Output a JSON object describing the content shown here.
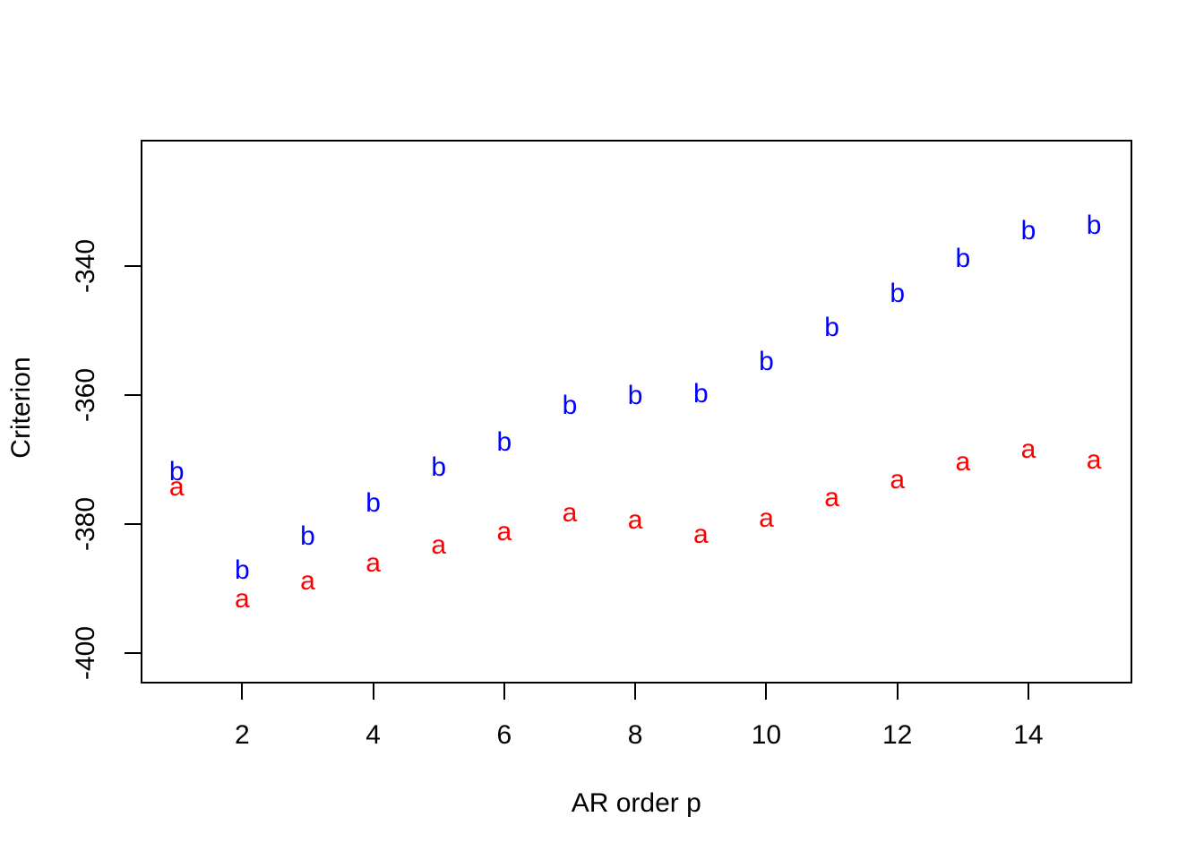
{
  "figure": {
    "background": "#FFFFFF",
    "axis_color": "#000000",
    "series_a_color": "#FF0000",
    "series_b_color": "#0000FF"
  },
  "chart_data": {
    "type": "scatter",
    "title": "",
    "xlabel": "AR order p",
    "ylabel": "Criterion",
    "point_style": "text-characters",
    "x": [
      1,
      2,
      3,
      4,
      5,
      6,
      7,
      8,
      9,
      10,
      11,
      12,
      13,
      14,
      15
    ],
    "series": [
      {
        "name": "a",
        "symbol": "a",
        "color": "#FF0000",
        "values": [
          -374.3,
          -391.7,
          -388.9,
          -386.1,
          -383.3,
          -381.3,
          -378.4,
          -379.4,
          -381.7,
          -379.2,
          -376.0,
          -373.2,
          -370.4,
          -368.5,
          -370.2
        ]
      },
      {
        "name": "b",
        "symbol": "b",
        "color": "#0000FF",
        "values": [
          -371.9,
          -387.2,
          -382.0,
          -376.8,
          -371.3,
          -367.3,
          -361.6,
          -360.1,
          -359.8,
          -354.8,
          -349.5,
          -344.3,
          -338.8,
          -334.6,
          -333.7
        ]
      }
    ],
    "x_ticks": [
      2,
      4,
      6,
      8,
      10,
      12,
      14
    ],
    "x_tick_labels": [
      "2",
      "4",
      "6",
      "8",
      "10",
      "12",
      "14"
    ],
    "y_ticks": [
      -400,
      -380,
      -360,
      -340
    ],
    "y_tick_labels": [
      "-400",
      "-380",
      "-360",
      "-340"
    ],
    "xlim": [
      0.45,
      15.58
    ],
    "ylim": [
      -404.7,
      -320.35
    ],
    "grid": false,
    "legend": null
  }
}
